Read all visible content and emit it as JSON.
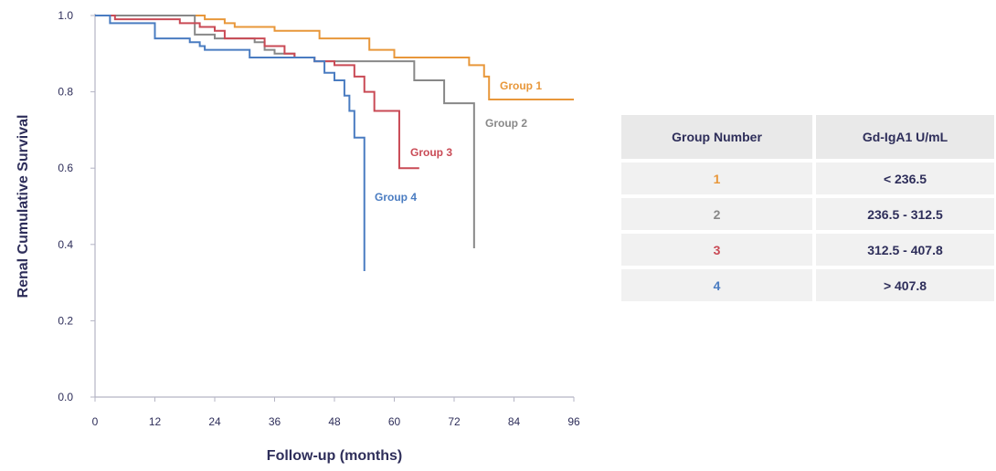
{
  "chart_data": {
    "type": "line",
    "xlabel": "Follow-up (months)",
    "ylabel": "Renal Cumulative Survival",
    "xlim": [
      0,
      96
    ],
    "ylim": [
      0,
      1.0
    ],
    "xticks": [
      0,
      12,
      24,
      36,
      48,
      60,
      72,
      84,
      96
    ],
    "yticks": [
      0.0,
      0.2,
      0.4,
      0.6,
      0.8,
      1.0
    ],
    "ytick_labels": [
      "0.0",
      "0.2",
      "0.4",
      "0.6",
      "0.8",
      "1.0"
    ],
    "grid": false,
    "step": true,
    "series": [
      {
        "name": "Group 1",
        "color": "#e8973a",
        "points": [
          [
            0,
            1.0
          ],
          [
            22,
            0.99
          ],
          [
            26,
            0.98
          ],
          [
            28,
            0.97
          ],
          [
            36,
            0.96
          ],
          [
            45,
            0.94
          ],
          [
            55,
            0.91
          ],
          [
            60,
            0.89
          ],
          [
            75,
            0.87
          ],
          [
            78,
            0.84
          ],
          [
            79,
            0.78
          ],
          [
            96,
            0.78
          ]
        ]
      },
      {
        "name": "Group 2",
        "color": "#888888",
        "points": [
          [
            0,
            1.0
          ],
          [
            20,
            0.95
          ],
          [
            24,
            0.94
          ],
          [
            32,
            0.93
          ],
          [
            34,
            0.91
          ],
          [
            36,
            0.9
          ],
          [
            40,
            0.89
          ],
          [
            44,
            0.88
          ],
          [
            64,
            0.83
          ],
          [
            70,
            0.77
          ],
          [
            76,
            0.77
          ],
          [
            76,
            0.39
          ]
        ]
      },
      {
        "name": "Group 3",
        "color": "#c94a55",
        "points": [
          [
            0,
            1.0
          ],
          [
            4,
            0.99
          ],
          [
            17,
            0.98
          ],
          [
            21,
            0.97
          ],
          [
            24,
            0.96
          ],
          [
            26,
            0.94
          ],
          [
            34,
            0.92
          ],
          [
            38,
            0.9
          ],
          [
            40,
            0.89
          ],
          [
            44,
            0.88
          ],
          [
            48,
            0.87
          ],
          [
            52,
            0.84
          ],
          [
            54,
            0.8
          ],
          [
            56,
            0.75
          ],
          [
            61,
            0.75
          ],
          [
            61,
            0.6
          ],
          [
            65,
            0.6
          ]
        ]
      },
      {
        "name": "Group 4",
        "color": "#4a7cc1",
        "points": [
          [
            0,
            1.0
          ],
          [
            3,
            0.98
          ],
          [
            12,
            0.94
          ],
          [
            19,
            0.93
          ],
          [
            21,
            0.92
          ],
          [
            22,
            0.91
          ],
          [
            31,
            0.89
          ],
          [
            44,
            0.88
          ],
          [
            46,
            0.85
          ],
          [
            48,
            0.83
          ],
          [
            50,
            0.79
          ],
          [
            51,
            0.75
          ],
          [
            52,
            0.68
          ],
          [
            54,
            0.68
          ],
          [
            54,
            0.33
          ]
        ]
      }
    ]
  },
  "legend_table": {
    "headers": [
      "Group Number",
      "Gd-IgA1 U/mL"
    ],
    "rows": [
      {
        "group": "1",
        "value": "< 236.5",
        "color": "#e8973a"
      },
      {
        "group": "2",
        "value": "236.5 - 312.5",
        "color": "#888888"
      },
      {
        "group": "3",
        "value": "312.5 - 407.8",
        "color": "#c94a55"
      },
      {
        "group": "4",
        "value": "> 407.8",
        "color": "#4a7cc1"
      }
    ]
  }
}
